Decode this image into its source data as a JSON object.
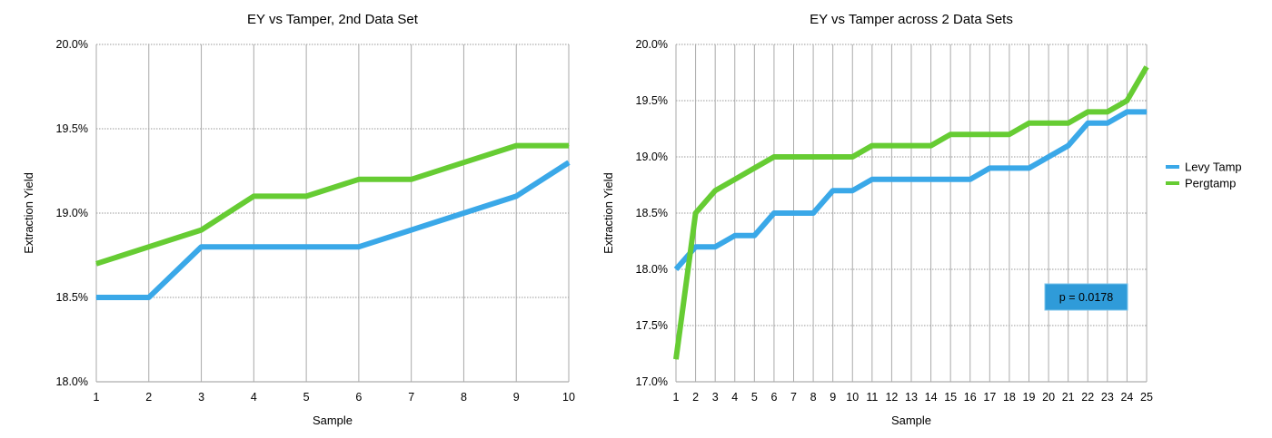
{
  "chart_data": [
    {
      "type": "line",
      "title": "EY vs Tamper, 2nd Data Set",
      "xlabel": "Sample",
      "ylabel": "Extraction Yield",
      "x": [
        1,
        2,
        3,
        4,
        5,
        6,
        7,
        8,
        9,
        10
      ],
      "ylim": [
        18.0,
        20.0
      ],
      "yticks": [
        18.0,
        18.5,
        19.0,
        19.5,
        20.0
      ],
      "ytick_labels": [
        "18.0%",
        "18.5%",
        "19.0%",
        "19.5%",
        "20.0%"
      ],
      "grid": true,
      "series": [
        {
          "name": "Levy Tamp",
          "color": "#3aa8e8",
          "values": [
            18.5,
            18.5,
            18.8,
            18.8,
            18.8,
            18.8,
            18.9,
            19.0,
            19.1,
            19.3
          ]
        },
        {
          "name": "Pergtamp",
          "color": "#66cc33",
          "values": [
            18.7,
            18.8,
            18.9,
            19.1,
            19.1,
            19.2,
            19.2,
            19.3,
            19.4,
            19.4
          ]
        }
      ]
    },
    {
      "type": "line",
      "title": "EY vs Tamper across 2 Data Sets",
      "xlabel": "Sample",
      "ylabel": "Extraction Yield",
      "x": [
        1,
        2,
        3,
        4,
        5,
        6,
        7,
        8,
        9,
        10,
        11,
        12,
        13,
        14,
        15,
        16,
        17,
        18,
        19,
        20,
        21,
        22,
        23,
        24,
        25
      ],
      "ylim": [
        17.0,
        20.0
      ],
      "yticks": [
        17.0,
        17.5,
        18.0,
        18.5,
        19.0,
        19.5,
        20.0
      ],
      "ytick_labels": [
        "17.0%",
        "17.5%",
        "18.0%",
        "18.5%",
        "19.0%",
        "19.5%",
        "20.0%"
      ],
      "grid": true,
      "legend": "right",
      "annotation": "p = 0.0178",
      "series": [
        {
          "name": "Levy Tamp",
          "color": "#3aa8e8",
          "values": [
            18.0,
            18.2,
            18.2,
            18.3,
            18.3,
            18.5,
            18.5,
            18.5,
            18.7,
            18.7,
            18.8,
            18.8,
            18.8,
            18.8,
            18.8,
            18.8,
            18.9,
            18.9,
            18.9,
            19.0,
            19.1,
            19.3,
            19.3,
            19.4,
            19.4
          ]
        },
        {
          "name": "Pergtamp",
          "color": "#66cc33",
          "values": [
            17.2,
            18.5,
            18.7,
            18.8,
            18.9,
            19.0,
            19.0,
            19.0,
            19.0,
            19.0,
            19.1,
            19.1,
            19.1,
            19.1,
            19.2,
            19.2,
            19.2,
            19.2,
            19.3,
            19.3,
            19.3,
            19.4,
            19.4,
            19.5,
            19.8
          ]
        }
      ]
    }
  ]
}
